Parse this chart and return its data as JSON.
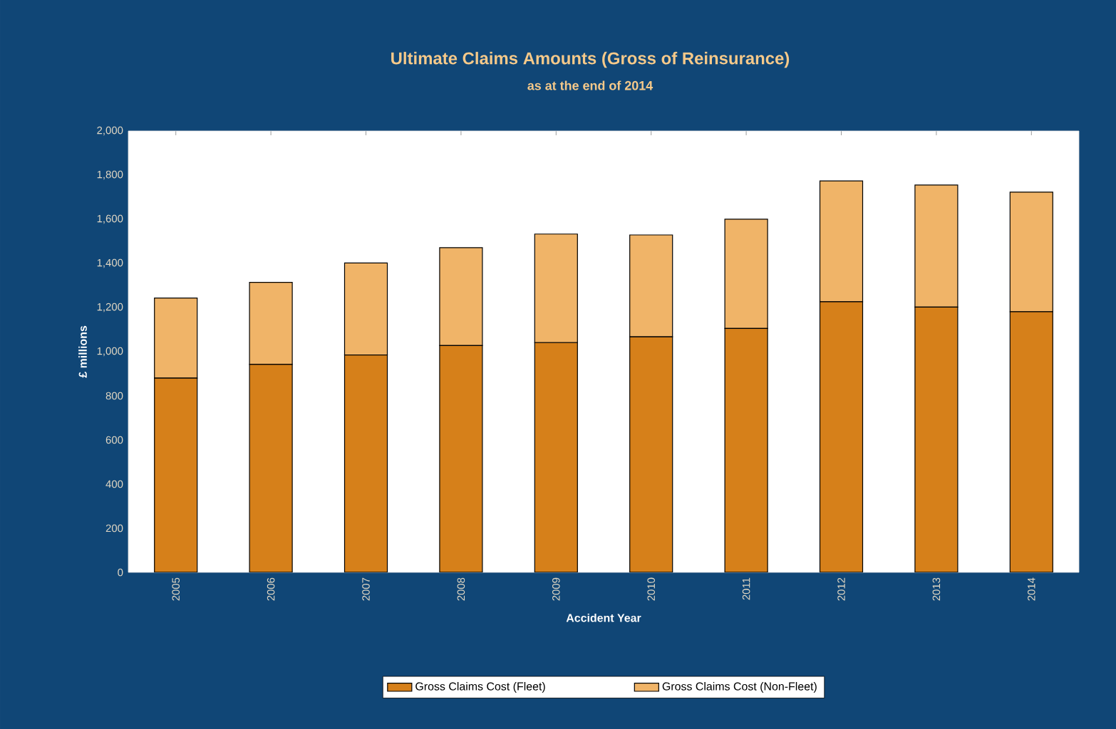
{
  "chart_data": {
    "type": "bar",
    "title": "Ultimate Claims Amounts (Gross of Reinsurance)",
    "subtitle": "as at  the end of 2014",
    "xlabel": "Accident Year",
    "ylabel": "£ millions",
    "categories": [
      "2005",
      "2006",
      "2007",
      "2008",
      "2009",
      "2010",
      "2011",
      "2012",
      "2013",
      "2014"
    ],
    "stacked": true,
    "series": [
      {
        "name": "Gross Claims Cost (Fleet)",
        "color": "#d6801a",
        "values": [
          880,
          942,
          985,
          1028,
          1041,
          1067,
          1105,
          1226,
          1202,
          1181
        ]
      },
      {
        "name": "Gross Claims Cost (Non-Fleet)",
        "color": "#f0b468",
        "values": [
          363,
          372,
          417,
          443,
          492,
          462,
          495,
          548,
          553,
          542
        ]
      }
    ],
    "ylim": [
      0,
      2000
    ],
    "yticks": [
      0,
      200,
      400,
      600,
      800,
      {
        "value": 1000,
        "label": "1,000"
      },
      {
        "value": 1200,
        "label": "1,200"
      },
      {
        "value": 1400,
        "label": "1,400"
      },
      {
        "value": 1600,
        "label": "1,600"
      },
      {
        "value": 1800,
        "label": "1,800"
      },
      {
        "value": 2000,
        "label": "2,000"
      }
    ],
    "grid": false,
    "legend": "bottom"
  }
}
